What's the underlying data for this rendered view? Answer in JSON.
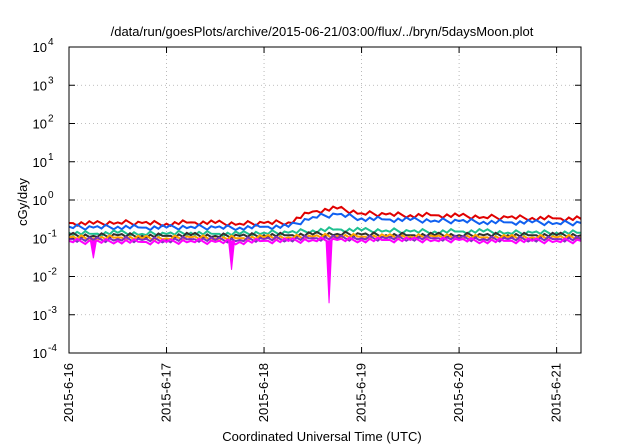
{
  "chart_data": {
    "type": "line",
    "title": "/data/run/goesPlots/archive/2015-06-21/03:00/flux/../bryn/5daysMoon.plot",
    "xlabel": "Coordinated Universal Time (UTC)",
    "ylabel": "cGy/day",
    "yscale": "log",
    "ylim": [
      0.0001,
      10000
    ],
    "xlim": [
      "2015-6-16",
      "2015-6-21 06:00"
    ],
    "grid": true,
    "x_ticks": [
      "2015-6-16",
      "2015-6-17",
      "2015-6-18",
      "2015-6-19",
      "2015-6-20",
      "2015-6-21"
    ],
    "y_ticks": [
      {
        "value": 0.0001,
        "base": "10",
        "exp": "-4"
      },
      {
        "value": 0.001,
        "base": "10",
        "exp": "-3"
      },
      {
        "value": 0.01,
        "base": "10",
        "exp": "-2"
      },
      {
        "value": 0.1,
        "base": "10",
        "exp": "-1"
      },
      {
        "value": 1,
        "base": "10",
        "exp": "0"
      },
      {
        "value": 10,
        "base": "10",
        "exp": "1"
      },
      {
        "value": 100,
        "base": "10",
        "exp": "2"
      },
      {
        "value": 1000,
        "base": "10",
        "exp": "3"
      },
      {
        "value": 10000,
        "base": "10",
        "exp": "4"
      }
    ],
    "x": [
      "2015-6-16 00:00",
      "2015-6-16 06:00",
      "2015-6-16 12:00",
      "2015-6-16 18:00",
      "2015-6-17 00:00",
      "2015-6-17 06:00",
      "2015-6-17 12:00",
      "2015-6-17 18:00",
      "2015-6-18 00:00",
      "2015-6-18 06:00",
      "2015-6-18 12:00",
      "2015-6-18 18:00",
      "2015-6-19 00:00",
      "2015-6-19 06:00",
      "2015-6-19 12:00",
      "2015-6-19 18:00",
      "2015-6-20 00:00",
      "2015-6-20 06:00",
      "2015-6-20 12:00",
      "2015-6-20 18:00",
      "2015-6-21 00:00",
      "2015-6-21 06:00"
    ],
    "series": [
      {
        "color": "#e00000",
        "values": [
          0.25,
          0.24,
          0.26,
          0.25,
          0.24,
          0.26,
          0.25,
          0.24,
          0.25,
          0.26,
          0.5,
          0.6,
          0.45,
          0.42,
          0.4,
          0.4,
          0.38,
          0.36,
          0.35,
          0.34,
          0.33,
          0.32
        ]
      },
      {
        "color": "#1060f0",
        "values": [
          0.2,
          0.19,
          0.2,
          0.19,
          0.19,
          0.2,
          0.19,
          0.19,
          0.2,
          0.2,
          0.36,
          0.42,
          0.33,
          0.31,
          0.3,
          0.29,
          0.28,
          0.27,
          0.26,
          0.26,
          0.25,
          0.25
        ]
      },
      {
        "color": "#20c090",
        "values": [
          0.14,
          0.13,
          0.14,
          0.13,
          0.13,
          0.14,
          0.13,
          0.13,
          0.14,
          0.14,
          0.16,
          0.17,
          0.16,
          0.16,
          0.15,
          0.15,
          0.15,
          0.15,
          0.14,
          0.14,
          0.14,
          0.14
        ]
      },
      {
        "color": "#303030",
        "values": [
          0.12,
          0.115,
          0.12,
          0.115,
          0.115,
          0.12,
          0.115,
          0.115,
          0.12,
          0.12,
          0.125,
          0.13,
          0.125,
          0.12,
          0.12,
          0.12,
          0.12,
          0.12,
          0.12,
          0.12,
          0.12,
          0.12
        ]
      },
      {
        "color": "#ffa000",
        "values": [
          0.105,
          0.1,
          0.105,
          0.1,
          0.1,
          0.105,
          0.1,
          0.1,
          0.105,
          0.105,
          0.11,
          0.115,
          0.11,
          0.11,
          0.11,
          0.11,
          0.11,
          0.105,
          0.105,
          0.105,
          0.105,
          0.105
        ]
      },
      {
        "color": "#8030c0",
        "values": [
          0.095,
          0.09,
          0.095,
          0.09,
          0.09,
          0.095,
          0.09,
          0.09,
          0.095,
          0.095,
          0.1,
          0.1,
          0.1,
          0.1,
          0.1,
          0.1,
          0.1,
          0.095,
          0.095,
          0.095,
          0.095,
          0.095
        ]
      },
      {
        "color": "#ff00ff",
        "values": [
          0.085,
          0.08,
          0.085,
          0.08,
          0.08,
          0.085,
          0.08,
          0.08,
          0.085,
          0.085,
          0.09,
          0.09,
          0.09,
          0.09,
          0.09,
          0.09,
          0.09,
          0.085,
          0.085,
          0.085,
          0.085,
          0.085
        ]
      }
    ],
    "dips": [
      {
        "series": 6,
        "x": "2015-6-16 06:00",
        "y": 0.03
      },
      {
        "series": 6,
        "x": "2015-6-17 16:00",
        "y": 0.015
      },
      {
        "series": 6,
        "x": "2015-6-18 16:00",
        "y": 0.002
      }
    ]
  }
}
